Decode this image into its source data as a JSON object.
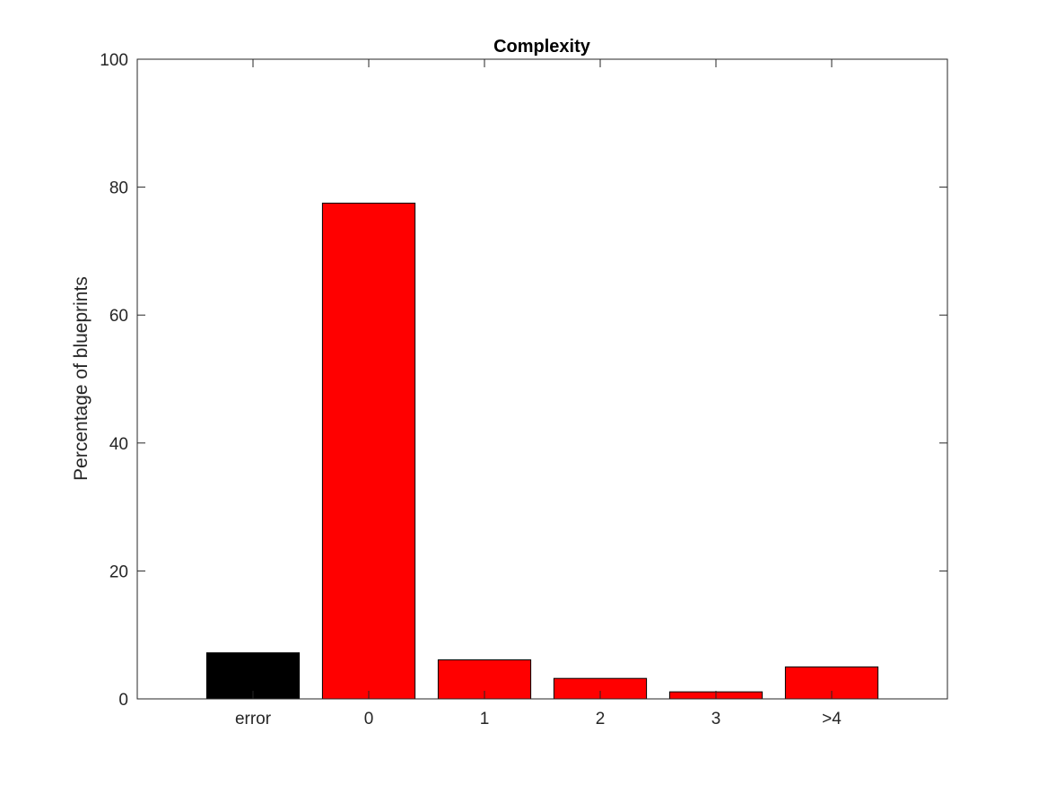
{
  "chart_data": {
    "type": "bar",
    "title": "Complexity",
    "xlabel": "",
    "ylabel": "Percentage of blueprints",
    "categories": [
      "error",
      "0",
      "1",
      "2",
      "3",
      ">4"
    ],
    "values": [
      7.2,
      77.5,
      6.1,
      3.2,
      1.1,
      5.0
    ],
    "bar_colors": [
      "#000000",
      "#ff0000",
      "#ff0000",
      "#ff0000",
      "#ff0000",
      "#ff0000"
    ],
    "ylim": [
      0,
      100
    ],
    "yticks": [
      "0",
      "20",
      "40",
      "60",
      "80",
      "100"
    ],
    "grid": false,
    "legend": "none"
  }
}
